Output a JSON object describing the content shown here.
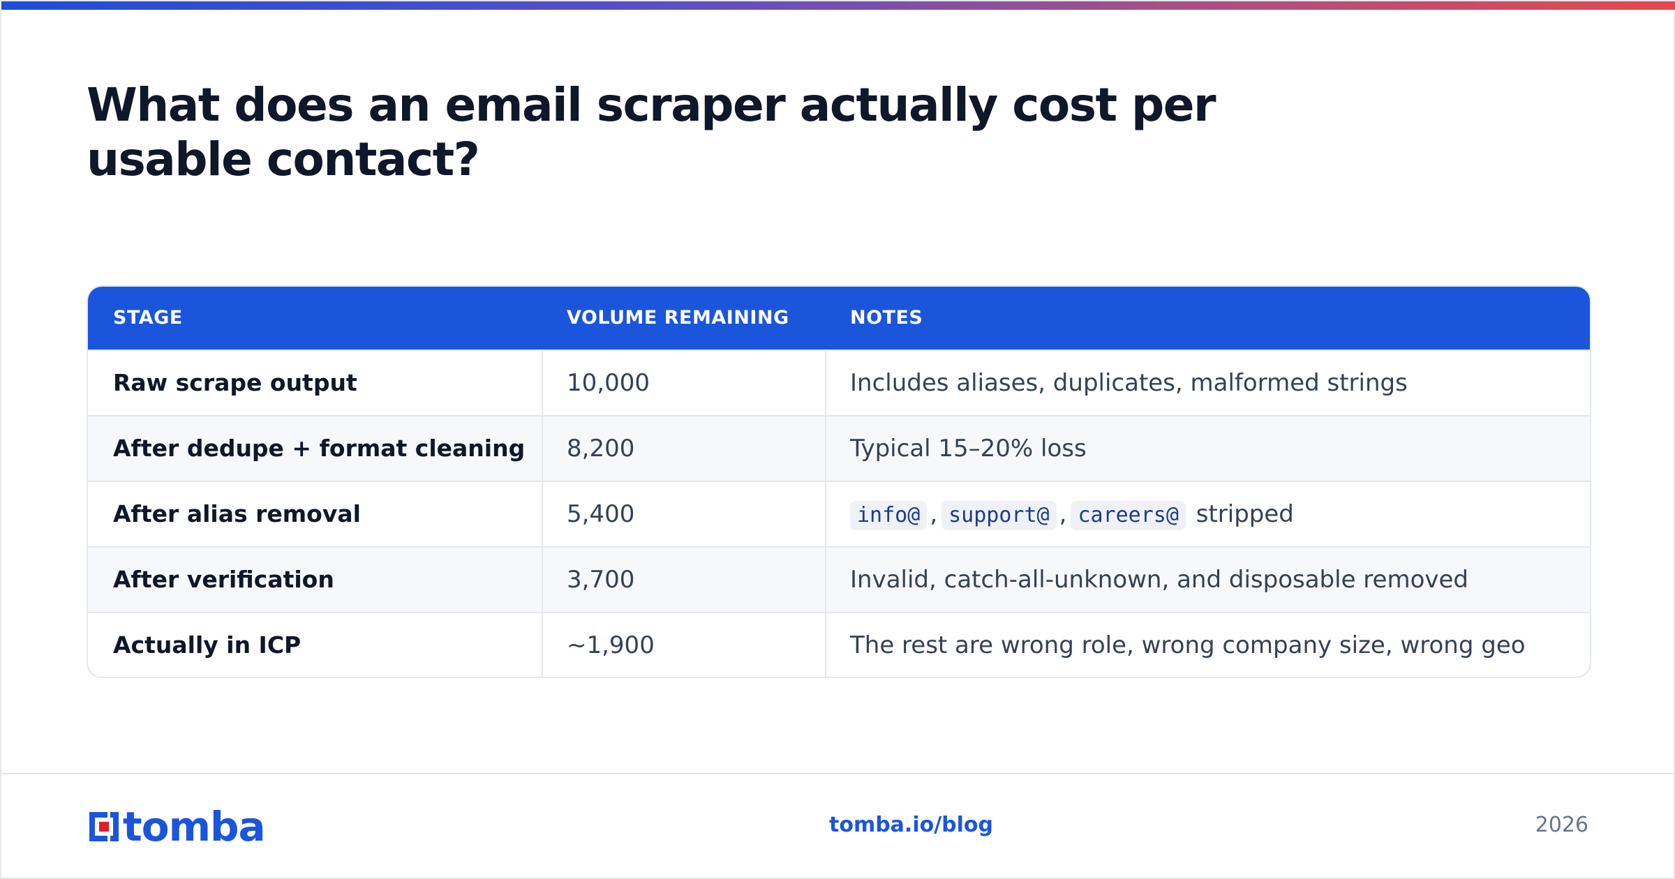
{
  "header": {
    "title": "What does an email scraper actually cost per usable contact?"
  },
  "table": {
    "columns": [
      "STAGE",
      "VOLUME REMAINING",
      "NOTES"
    ],
    "rows": [
      {
        "stage": "Raw scrape output",
        "volume": "10,000",
        "notes": "Includes aliases, duplicates, malformed strings"
      },
      {
        "stage": "After dedupe + format cleaning",
        "volume": "8,200",
        "notes": "Typical 15–20% loss"
      },
      {
        "stage": "After alias removal",
        "volume": "5,400",
        "notes_codes": [
          "info@",
          "support@",
          "careers@"
        ],
        "notes_sep": ",",
        "notes_suffix": "stripped"
      },
      {
        "stage": "After verification",
        "volume": "3,700",
        "notes": "Invalid, catch-all-unknown, and disposable removed"
      },
      {
        "stage": "Actually in ICP",
        "volume": "~1,900",
        "notes": "The rest are wrong role, wrong company size, wrong geo"
      }
    ]
  },
  "footer": {
    "logo_text": "tomba",
    "link": "tomba.io/blog",
    "year": "2026"
  },
  "colors": {
    "accent": "#1b55dc",
    "logo_red": "#e11d2a",
    "gradient": [
      "#1d4ed8",
      "#e5484d"
    ]
  },
  "icons": {
    "logo_mark": "tomba-logo-mark-icon"
  }
}
